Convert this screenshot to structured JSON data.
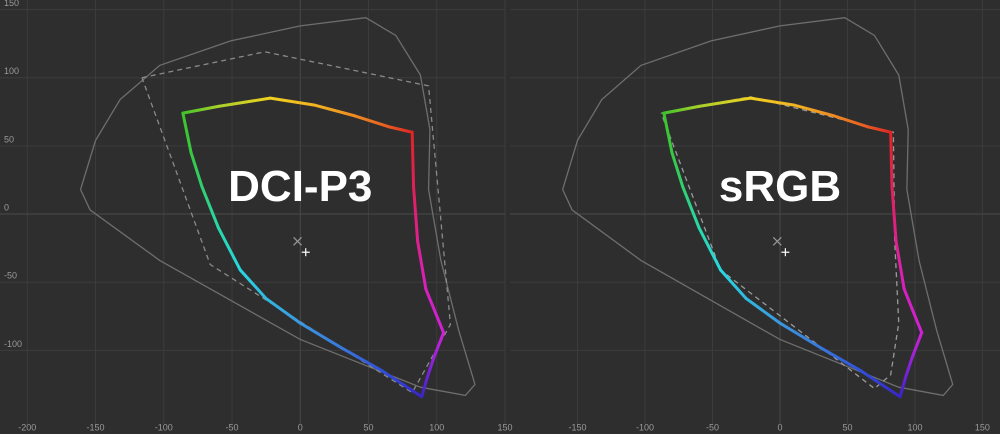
{
  "chart_data": [
    {
      "type": "gamut",
      "label": "DCI-P3",
      "xlim": [
        -220,
        150
      ],
      "ylim": [
        -154,
        157
      ],
      "xticks": [
        -200,
        -150,
        -100,
        -50,
        0,
        50,
        100,
        150
      ],
      "yticks": [
        -100,
        -50,
        0,
        50,
        100,
        150
      ],
      "ytick_labels": true,
      "grid": true,
      "locus": {
        "color": "#6e6e6e",
        "dashed": false,
        "x": [
          -161,
          -150,
          -132,
          -103,
          -51,
          0,
          48,
          70,
          88,
          95,
          94,
          103,
          116,
          128,
          121,
          88,
          0,
          -103,
          -154,
          -161
        ],
        "y": [
          18,
          54,
          84,
          109,
          127,
          138,
          144,
          131,
          102,
          62,
          18,
          -34,
          -85,
          -125,
          -133,
          -127,
          -92,
          -34,
          3,
          18
        ]
      },
      "reference": {
        "color": "#8a8a8a",
        "dashed": true,
        "x": [
          -116,
          -26,
          94,
          110,
          82,
          -66,
          -116
        ],
        "y": [
          100,
          119,
          94,
          -81,
          -131,
          -37,
          100
        ]
      },
      "gamut": {
        "x": [
          -86,
          -60,
          -22,
          10,
          40,
          65,
          82,
          83,
          86,
          92,
          105,
          98,
          93,
          89,
          60,
          30,
          0,
          -25,
          -44,
          -60,
          -72,
          -80,
          -86
        ],
        "y": [
          74,
          79,
          85,
          80,
          72,
          64,
          60,
          20,
          -20,
          -55,
          -87,
          -105,
          -120,
          -134,
          -115,
          -98,
          -80,
          -62,
          -41,
          -10,
          20,
          45,
          74
        ],
        "colors": [
          "#3fc42a",
          "#a8d02a",
          "#f0d020",
          "#f0b420",
          "#ee8a22",
          "#e85a22",
          "#e02424",
          "#e0205a",
          "#e02090",
          "#d820c0",
          "#d020d8",
          "#9a22d8",
          "#6a22d8",
          "#3a24c8",
          "#3050d8",
          "#3878dc",
          "#3a98e0",
          "#30b8e0",
          "#28d8e0",
          "#28d8a8",
          "#30d070",
          "#38c840",
          "#3fc42a"
        ]
      },
      "white_points": {
        "x": [
          -2,
          4
        ],
        "y": [
          -20,
          -28
        ]
      }
    },
    {
      "type": "gamut",
      "label": "sRGB",
      "xlim": [
        -200,
        163
      ],
      "ylim": [
        -154,
        157
      ],
      "xticks": [
        -150,
        -100,
        -50,
        0,
        50,
        100,
        150
      ],
      "yticks": [
        -100,
        -50,
        0,
        50,
        100,
        150
      ],
      "ytick_labels": false,
      "grid": true,
      "locus": {
        "color": "#6e6e6e",
        "dashed": false,
        "x": [
          -161,
          -150,
          -132,
          -103,
          -51,
          0,
          48,
          70,
          88,
          95,
          94,
          103,
          116,
          128,
          121,
          88,
          0,
          -103,
          -154,
          -161
        ],
        "y": [
          18,
          54,
          84,
          109,
          127,
          138,
          144,
          131,
          102,
          62,
          18,
          -34,
          -85,
          -125,
          -133,
          -127,
          -92,
          -34,
          3,
          18
        ]
      },
      "reference": {
        "color": "#9a9a9a",
        "dashed": true,
        "x": [
          -88,
          -22,
          84,
          85,
          88,
          82,
          70,
          -44,
          -88
        ],
        "y": [
          74,
          86,
          60,
          -20,
          -80,
          -118,
          -128,
          -41,
          74
        ]
      },
      "gamut": {
        "x": [
          -86,
          -60,
          -22,
          10,
          40,
          65,
          82,
          83,
          86,
          92,
          105,
          98,
          93,
          89,
          60,
          30,
          0,
          -25,
          -44,
          -60,
          -72,
          -80,
          -86
        ],
        "y": [
          74,
          79,
          85,
          80,
          72,
          64,
          60,
          20,
          -20,
          -55,
          -87,
          -105,
          -120,
          -134,
          -115,
          -98,
          -80,
          -62,
          -41,
          -10,
          20,
          45,
          74
        ],
        "colors": [
          "#3fc42a",
          "#a8d02a",
          "#f0d020",
          "#f0b420",
          "#ee8a22",
          "#e85a22",
          "#e02424",
          "#e0205a",
          "#e02090",
          "#d820c0",
          "#d020d8",
          "#9a22d8",
          "#6a22d8",
          "#3a24c8",
          "#3050d8",
          "#3878dc",
          "#3a98e0",
          "#30b8e0",
          "#28d8e0",
          "#28d8a8",
          "#30d070",
          "#38c840",
          "#3fc42a"
        ]
      },
      "white_points": {
        "x": [
          -2,
          4
        ],
        "y": [
          -20,
          -28
        ]
      }
    }
  ]
}
